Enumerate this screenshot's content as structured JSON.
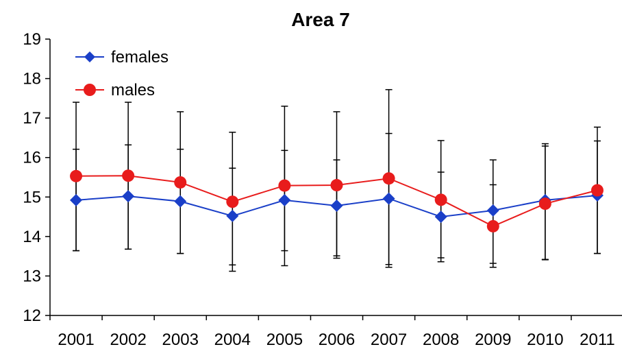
{
  "chart_data": {
    "type": "line",
    "title": "Area 7",
    "xlabel": "",
    "ylabel": "",
    "ylim": [
      12,
      19
    ],
    "yticks": [
      12,
      13,
      14,
      15,
      16,
      17,
      18,
      19
    ],
    "categories": [
      "2001",
      "2002",
      "2003",
      "2004",
      "2005",
      "2006",
      "2007",
      "2008",
      "2009",
      "2010",
      "2011"
    ],
    "legend_position": "top-left",
    "grid": false,
    "series": [
      {
        "name": "females",
        "color": "#1a3fc8",
        "marker": "diamond",
        "values": [
          14.92,
          15.02,
          14.89,
          14.52,
          14.92,
          14.78,
          14.96,
          14.5,
          14.66,
          14.92,
          15.04
        ],
        "error_low": [
          13.64,
          13.68,
          13.57,
          13.28,
          13.64,
          13.51,
          13.29,
          13.46,
          13.32,
          13.42,
          13.57
        ],
        "error_high": [
          16.21,
          16.32,
          16.21,
          15.73,
          16.18,
          15.94,
          16.61,
          15.63,
          15.31,
          16.35,
          16.42
        ]
      },
      {
        "name": "males",
        "color": "#e81c1c",
        "marker": "circle",
        "values": [
          15.53,
          15.54,
          15.37,
          14.88,
          15.29,
          15.3,
          15.47,
          14.93,
          14.26,
          14.83,
          15.17
        ],
        "error_low": [
          13.64,
          13.68,
          13.57,
          13.12,
          13.26,
          13.45,
          13.22,
          13.36,
          13.22,
          13.41,
          13.57
        ],
        "error_high": [
          17.4,
          17.4,
          17.16,
          16.64,
          17.3,
          17.16,
          17.72,
          16.43,
          15.94,
          16.29,
          16.77
        ]
      }
    ]
  }
}
